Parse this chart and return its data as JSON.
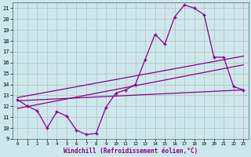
{
  "xlabel": "Windchill (Refroidissement éolien,°C)",
  "bg_color": "#cce8ec",
  "line_color": "#880088",
  "grid_color": "#bbbbbb",
  "xlim": [
    -0.5,
    23.5
  ],
  "ylim": [
    9,
    21.5
  ],
  "yticks": [
    9,
    10,
    11,
    12,
    13,
    14,
    15,
    16,
    17,
    18,
    19,
    20,
    21
  ],
  "xticks": [
    0,
    1,
    2,
    3,
    4,
    5,
    6,
    7,
    8,
    9,
    10,
    11,
    12,
    13,
    14,
    15,
    16,
    17,
    18,
    19,
    20,
    21,
    22,
    23
  ],
  "series1_x": [
    0,
    1,
    2,
    3,
    4,
    5,
    6,
    7,
    8,
    9,
    10,
    11,
    12,
    13,
    14,
    15,
    16,
    17,
    18,
    19,
    20,
    21,
    22,
    23
  ],
  "series1_y": [
    12.6,
    12.0,
    11.6,
    10.0,
    11.5,
    11.1,
    9.8,
    9.4,
    9.5,
    11.9,
    13.2,
    13.5,
    14.0,
    16.3,
    18.6,
    17.7,
    20.2,
    21.3,
    21.0,
    20.4,
    16.5,
    16.5,
    13.8,
    13.5
  ],
  "line1_x": [
    0,
    23
  ],
  "line1_y": [
    12.5,
    13.5
  ],
  "line2_x": [
    0,
    23
  ],
  "line2_y": [
    12.8,
    16.6
  ],
  "line3_x": [
    0,
    23
  ],
  "line3_y": [
    11.8,
    15.8
  ]
}
